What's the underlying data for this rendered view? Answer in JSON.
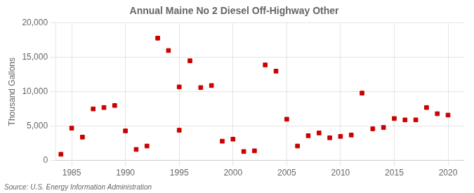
{
  "chart_data": {
    "type": "scatter",
    "title": "Annual Maine No 2 Diesel Off-Highway Other",
    "ylabel": "Thousand Gallons",
    "annotation": "Source: U.S. Energy Information Administration",
    "x": [
      1984,
      1985,
      1986,
      1987,
      1988,
      1989,
      1990,
      1991,
      1992,
      1993,
      1994,
      1995,
      1995,
      1996,
      1997,
      1998,
      1999,
      2000,
      2001,
      2002,
      2003,
      2004,
      2005,
      2006,
      2007,
      2008,
      2009,
      2010,
      2011,
      2012,
      2013,
      2014,
      2015,
      2016,
      2017,
      2018,
      2019,
      2020
    ],
    "values": [
      900,
      4700,
      3400,
      7500,
      7700,
      8000,
      4300,
      1600,
      2100,
      17800,
      16000,
      4400,
      10700,
      14500,
      10600,
      10900,
      2800,
      3100,
      1300,
      1400,
      13900,
      13000,
      6000,
      2100,
      3600,
      4000,
      3300,
      3500,
      3700,
      9800,
      4600,
      4800,
      6100,
      5900,
      5900,
      7700,
      6800,
      6600
    ],
    "color": "#cc0000",
    "marker": "square",
    "xlim": [
      1983.5,
      2021.5
    ],
    "xticks": [
      1985,
      1990,
      1995,
      2000,
      2005,
      2010,
      2015,
      2020
    ],
    "ylim": [
      0,
      20000
    ],
    "yticks": [
      0,
      {
        "value": 5000,
        "label": "5,000"
      },
      {
        "value": 10000,
        "label": "10,000"
      },
      {
        "value": 15000,
        "label": "15,000"
      },
      {
        "value": 20000,
        "label": "20,000"
      }
    ],
    "grid": true
  }
}
